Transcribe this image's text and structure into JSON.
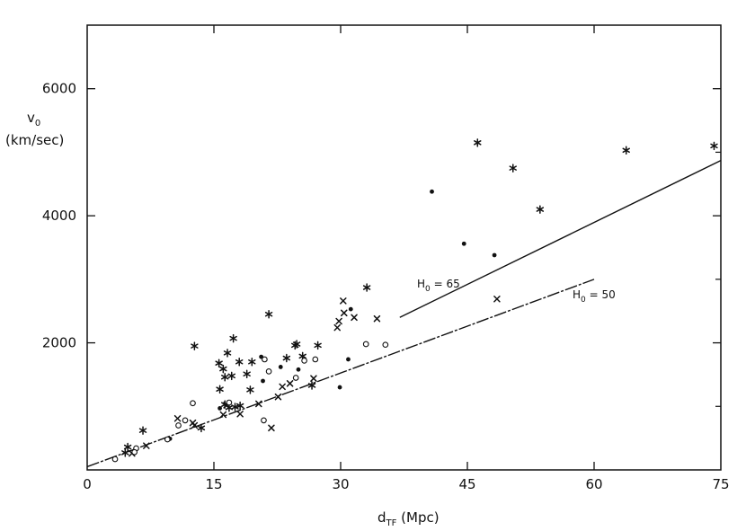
{
  "chart_data": {
    "type": "scatter",
    "xlabel": {
      "main": "d",
      "sub": "TF",
      "rest": " (Mpc)"
    },
    "ylabel": {
      "main": "v",
      "sub": "0",
      "unit": "(km/sec)"
    },
    "xlim": [
      0,
      75
    ],
    "ylim": [
      0,
      7000
    ],
    "x_ticks": [
      0,
      15,
      30,
      45,
      60,
      75
    ],
    "y_ticks": [
      2000,
      4000,
      6000
    ],
    "x_tick_labels": [
      "0",
      "15",
      "30",
      "45",
      "60",
      "75"
    ],
    "y_tick_labels": [
      "2000",
      "4000",
      "6000"
    ],
    "lines": [
      {
        "label": {
          "main": "H",
          "sub": "0",
          "rest": " = 65"
        },
        "x": [
          37,
          75
        ],
        "y": [
          2400,
          4870
        ]
      },
      {
        "label": {
          "main": "H",
          "sub": "0",
          "rest": " = 50"
        },
        "x": [
          0,
          60
        ],
        "y": [
          50,
          3000
        ]
      }
    ],
    "series": [
      {
        "marker": "asterisk",
        "points": [
          [
            12.7,
            1950
          ],
          [
            15.6,
            1680
          ],
          [
            16.1,
            1590
          ],
          [
            16.6,
            1840
          ],
          [
            17.3,
            2070
          ],
          [
            15.7,
            1270
          ],
          [
            16.3,
            1460
          ],
          [
            17.1,
            1480
          ],
          [
            18.0,
            1700
          ],
          [
            18.9,
            1510
          ],
          [
            19.5,
            1700
          ],
          [
            19.3,
            1260
          ],
          [
            21.5,
            2450
          ],
          [
            23.6,
            1760
          ],
          [
            24.6,
            1960
          ],
          [
            25.5,
            1790
          ],
          [
            27.3,
            1960
          ],
          [
            33.1,
            2870
          ],
          [
            26.6,
            1330
          ],
          [
            17.5,
            990
          ],
          [
            16.3,
            1030
          ],
          [
            18.1,
            1010
          ],
          [
            46.2,
            5150
          ],
          [
            50.4,
            4750
          ],
          [
            53.6,
            4100
          ],
          [
            63.8,
            5030
          ],
          [
            74.2,
            5100
          ],
          [
            6.6,
            620
          ],
          [
            4.8,
            360
          ],
          [
            4.5,
            270
          ],
          [
            13.5,
            660
          ],
          [
            24.8,
            1980
          ],
          [
            16.8,
            980
          ]
        ]
      },
      {
        "marker": "cross",
        "points": [
          [
            30.3,
            2660
          ],
          [
            30.4,
            2470
          ],
          [
            31.6,
            2400
          ],
          [
            34.3,
            2380
          ],
          [
            29.6,
            2240
          ],
          [
            29.8,
            2340
          ],
          [
            48.5,
            2690
          ],
          [
            26.8,
            1440
          ],
          [
            24.0,
            1360
          ],
          [
            23.1,
            1310
          ],
          [
            22.6,
            1150
          ],
          [
            21.8,
            660
          ],
          [
            20.3,
            1040
          ],
          [
            18.1,
            880
          ],
          [
            16.5,
            1020
          ],
          [
            16.1,
            870
          ],
          [
            12.7,
            700
          ],
          [
            12.5,
            740
          ],
          [
            10.7,
            810
          ],
          [
            7.0,
            380
          ],
          [
            5.3,
            260
          ]
        ]
      },
      {
        "marker": "dot",
        "points": [
          [
            40.8,
            4380
          ],
          [
            44.6,
            3560
          ],
          [
            48.2,
            3380
          ],
          [
            31.2,
            2530
          ],
          [
            30.9,
            1740
          ],
          [
            29.9,
            1300
          ],
          [
            25.0,
            1580
          ],
          [
            22.9,
            1620
          ],
          [
            20.8,
            1400
          ],
          [
            15.7,
            970
          ],
          [
            9.8,
            490
          ],
          [
            20.6,
            1780
          ]
        ]
      },
      {
        "marker": "circle",
        "points": [
          [
            33.0,
            1980
          ],
          [
            35.3,
            1970
          ],
          [
            27.0,
            1740
          ],
          [
            25.7,
            1720
          ],
          [
            21.5,
            1550
          ],
          [
            21.0,
            1740
          ],
          [
            24.7,
            1450
          ],
          [
            20.9,
            780
          ],
          [
            12.5,
            1050
          ],
          [
            16.8,
            1060
          ],
          [
            10.8,
            700
          ],
          [
            11.6,
            780
          ],
          [
            9.5,
            480
          ],
          [
            5.8,
            340
          ],
          [
            3.3,
            170
          ],
          [
            5.6,
            280
          ]
        ]
      }
    ]
  }
}
